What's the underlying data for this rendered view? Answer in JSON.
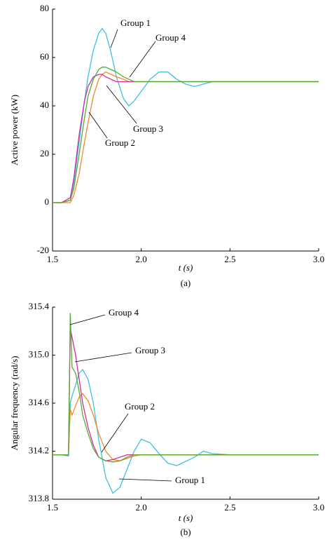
{
  "chart_data": [
    {
      "type": "line",
      "caption": "(a)",
      "xlabel": "t (s)",
      "ylabel": "Active power (kW)",
      "xlim": [
        1.5,
        3.0
      ],
      "xticks": [
        1.5,
        {
          "value": 2.0,
          "label": "2.0"
        },
        2.5,
        {
          "value": 3.0,
          "label": "3.0"
        }
      ],
      "ylim": [
        -20,
        80
      ],
      "yticks": [
        -20,
        0,
        20,
        40,
        60,
        80
      ],
      "x": [
        1.5,
        1.55,
        1.6,
        1.62,
        1.65,
        1.68,
        1.7,
        1.73,
        1.76,
        1.78,
        1.8,
        1.83,
        1.86,
        1.9,
        1.93,
        1.96,
        2.0,
        2.05,
        2.1,
        2.15,
        2.2,
        2.25,
        2.3,
        2.4,
        2.5,
        2.6,
        2.7,
        2.8,
        2.9,
        3.0
      ],
      "series": [
        {
          "name": "Group 1",
          "color": "#3fbfe6",
          "values": [
            0,
            0,
            1,
            8,
            25,
            42,
            52,
            63,
            70,
            72,
            70,
            62,
            52,
            43,
            40,
            42,
            46,
            51,
            54,
            54,
            51,
            49,
            48,
            50,
            50,
            50,
            50,
            50,
            50,
            50
          ]
        },
        {
          "name": "Group 2",
          "color": "#f08a2c",
          "values": [
            0,
            0,
            0,
            3,
            12,
            25,
            33,
            44,
            51,
            53,
            54,
            53,
            52,
            51,
            50,
            50,
            50,
            50,
            50,
            50,
            50,
            50,
            50,
            50,
            50,
            50,
            50,
            50,
            50,
            50
          ]
        },
        {
          "name": "Group 3",
          "color": "#d12aa3",
          "values": [
            0,
            0,
            2,
            10,
            28,
            42,
            48,
            52,
            53,
            53,
            52,
            51,
            50,
            50,
            50,
            50,
            50,
            50,
            50,
            50,
            50,
            50,
            50,
            50,
            50,
            50,
            50,
            50,
            50,
            50
          ]
        },
        {
          "name": "Group 4",
          "color": "#5aa832",
          "values": [
            0,
            0,
            1,
            6,
            20,
            35,
            44,
            51,
            55,
            56,
            56,
            55,
            54,
            52,
            51,
            50,
            50,
            50,
            50,
            50,
            50,
            50,
            50,
            50,
            50,
            50,
            50,
            50,
            50,
            50
          ]
        }
      ]
    },
    {
      "type": "line",
      "caption": "(b)",
      "xlabel": "t (s)",
      "ylabel": "Angular frequency (rad/s)",
      "xlim": [
        1.5,
        3.0
      ],
      "xticks": [
        1.5,
        {
          "value": 2.0,
          "label": "2.0"
        },
        2.5,
        {
          "value": 3.0,
          "label": "3.0"
        }
      ],
      "ylim": [
        313.8,
        315.4
      ],
      "yticks": [
        313.8,
        314.2,
        314.6,
        {
          "value": 315.0,
          "label": "315.0"
        },
        315.4
      ],
      "x": [
        1.5,
        1.55,
        1.59,
        1.6,
        1.61,
        1.63,
        1.65,
        1.67,
        1.7,
        1.73,
        1.76,
        1.8,
        1.84,
        1.88,
        1.92,
        1.96,
        2.0,
        2.05,
        2.1,
        2.15,
        2.2,
        2.3,
        2.35,
        2.4,
        2.5,
        2.6,
        2.7,
        2.8,
        2.9,
        3.0
      ],
      "series": [
        {
          "name": "Group 1",
          "color": "#3fbfe6",
          "values": [
            314.17,
            314.17,
            314.16,
            314.6,
            314.66,
            314.75,
            314.85,
            314.88,
            314.8,
            314.6,
            314.3,
            313.98,
            313.85,
            313.9,
            314.05,
            314.2,
            314.3,
            314.27,
            314.18,
            314.1,
            314.08,
            314.15,
            314.2,
            314.18,
            314.17,
            314.17,
            314.17,
            314.17,
            314.17,
            314.17
          ]
        },
        {
          "name": "Group 2",
          "color": "#f08a2c",
          "values": [
            314.17,
            314.17,
            314.17,
            314.55,
            314.5,
            314.58,
            314.65,
            314.68,
            314.62,
            314.5,
            314.35,
            314.2,
            314.13,
            314.12,
            314.14,
            314.16,
            314.17,
            314.17,
            314.17,
            314.17,
            314.17,
            314.17,
            314.17,
            314.17,
            314.17,
            314.17,
            314.17,
            314.17,
            314.17,
            314.17
          ]
        },
        {
          "name": "Group 3",
          "color": "#d12aa3",
          "values": [
            314.17,
            314.17,
            314.17,
            315.22,
            315.15,
            315.0,
            314.8,
            314.6,
            314.4,
            314.25,
            314.15,
            314.12,
            314.13,
            314.15,
            314.17,
            314.17,
            314.17,
            314.17,
            314.17,
            314.17,
            314.17,
            314.17,
            314.17,
            314.17,
            314.17,
            314.17,
            314.17,
            314.17,
            314.17,
            314.17
          ]
        },
        {
          "name": "Group 4",
          "color": "#5aa832",
          "values": [
            314.17,
            314.17,
            314.17,
            315.35,
            314.9,
            314.85,
            314.7,
            314.5,
            314.35,
            314.22,
            314.15,
            314.12,
            314.11,
            314.12,
            314.15,
            314.17,
            314.17,
            314.17,
            314.17,
            314.17,
            314.17,
            314.17,
            314.17,
            314.17,
            314.17,
            314.17,
            314.17,
            314.17,
            314.17,
            314.17
          ]
        }
      ]
    }
  ]
}
